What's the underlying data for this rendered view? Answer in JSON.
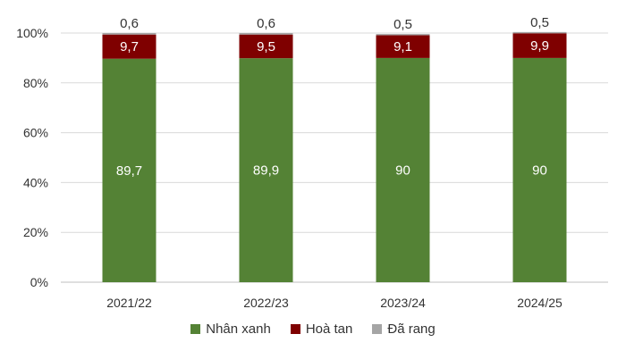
{
  "chart_data": {
    "type": "bar",
    "stacked": true,
    "percent": true,
    "categories": [
      "2021/22",
      "2022/23",
      "2023/24",
      "2024/25"
    ],
    "series": [
      {
        "name": "Nhân xanh",
        "color": "#548235",
        "values": [
          89.7,
          89.9,
          90,
          90
        ],
        "labels": [
          "89,7",
          "89,9",
          "90",
          "90"
        ]
      },
      {
        "name": "Hoà tan",
        "color": "#7f0000",
        "values": [
          9.7,
          9.5,
          9.1,
          9.9
        ],
        "labels": [
          "9,7",
          "9,5",
          "9,1",
          "9,9"
        ]
      },
      {
        "name": "Đã rang",
        "color": "#a5a5a5",
        "values": [
          0.6,
          0.6,
          0.5,
          0.5
        ],
        "labels": [
          "0,6",
          "0,6",
          "0,5",
          "0,5"
        ]
      }
    ],
    "yticks": [
      "0%",
      "20%",
      "40%",
      "60%",
      "80%",
      "100%"
    ],
    "ylim": [
      0,
      100
    ],
    "grid": true,
    "legend": "bottom"
  }
}
